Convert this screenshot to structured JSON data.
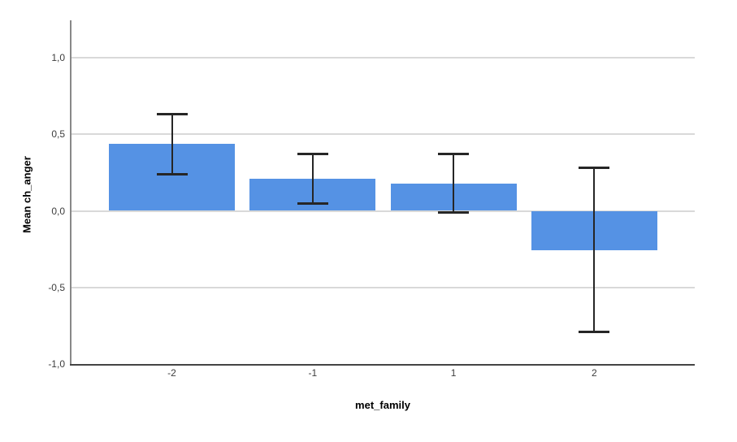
{
  "chart_data": {
    "type": "bar",
    "title": "",
    "xlabel": "met_family",
    "ylabel": "Mean ch_anger",
    "categories": [
      "-2",
      "-1",
      "1",
      "2"
    ],
    "values": [
      0.44,
      0.21,
      0.18,
      -0.26
    ],
    "error_bars": {
      "upper": [
        0.63,
        0.37,
        0.37,
        0.28
      ],
      "lower": [
        0.24,
        0.05,
        -0.01,
        -0.79
      ]
    },
    "ylim": [
      -1.0,
      1.0
    ],
    "yticks": {
      "values": [
        1.0,
        0.5,
        0.0,
        -0.5,
        -1.0
      ],
      "labels": [
        "1,0",
        "0,5",
        "0,0",
        "-0,5",
        "-1,0"
      ]
    },
    "decimal_separator": ",",
    "grid": "horizontal-only, no top/right border",
    "legend": "none",
    "colors": {
      "bar_fill": "#5592e4",
      "error_bar": "#262626",
      "gridline": "#d9d9d9",
      "y_axis_line": "#888888",
      "x_axis_line": "#444444",
      "tick_label": "#3d3d3d",
      "axis_title": "#000000",
      "background": "#ffffff"
    }
  }
}
